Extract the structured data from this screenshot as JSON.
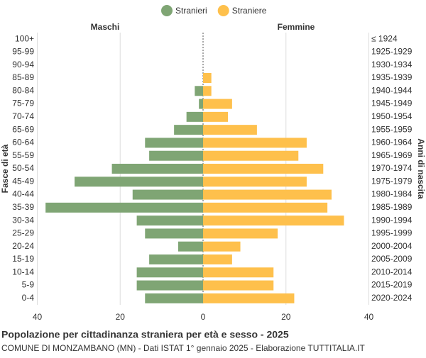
{
  "chart_data": {
    "type": "pyramid",
    "title": "Popolazione per cittadinanza straniera per età e sesso - 2025",
    "subtitle": "COMUNE DI MONZAMBANO (MN) - Dati ISTAT 1° gennaio 2025 - Elaborazione TUTTITALIA.IT",
    "left_header": "Maschi",
    "right_header": "Femmine",
    "y_label": "Fasce di età",
    "y2_label": "Anni di nascita",
    "categories": [
      "100+",
      "95-99",
      "90-94",
      "85-89",
      "80-84",
      "75-79",
      "70-74",
      "65-69",
      "60-64",
      "55-59",
      "50-54",
      "45-49",
      "40-44",
      "35-39",
      "30-34",
      "25-29",
      "20-24",
      "15-19",
      "10-14",
      "5-9",
      "0-4"
    ],
    "birth_years": [
      "≤ 1924",
      "1925-1929",
      "1930-1934",
      "1935-1939",
      "1940-1944",
      "1945-1949",
      "1950-1954",
      "1955-1959",
      "1960-1964",
      "1965-1969",
      "1970-1974",
      "1975-1979",
      "1980-1984",
      "1985-1989",
      "1990-1994",
      "1995-1999",
      "2000-2004",
      "2005-2009",
      "2010-2014",
      "2015-2019",
      "2020-2024"
    ],
    "series": [
      {
        "name": "Stranieri",
        "color": "#7fa574",
        "side": "left",
        "values": [
          0,
          0,
          0,
          0,
          2,
          1,
          4,
          7,
          14,
          13,
          22,
          31,
          17,
          38,
          16,
          14,
          6,
          13,
          16,
          16,
          14
        ]
      },
      {
        "name": "Straniere",
        "color": "#fec04c",
        "side": "right",
        "values": [
          0,
          0,
          0,
          2,
          2,
          7,
          6,
          13,
          25,
          23,
          29,
          25,
          31,
          30,
          34,
          18,
          9,
          7,
          17,
          17,
          22
        ]
      }
    ],
    "xlim": [
      0,
      40
    ],
    "xticks": [
      0,
      20,
      40
    ],
    "grid": true
  }
}
